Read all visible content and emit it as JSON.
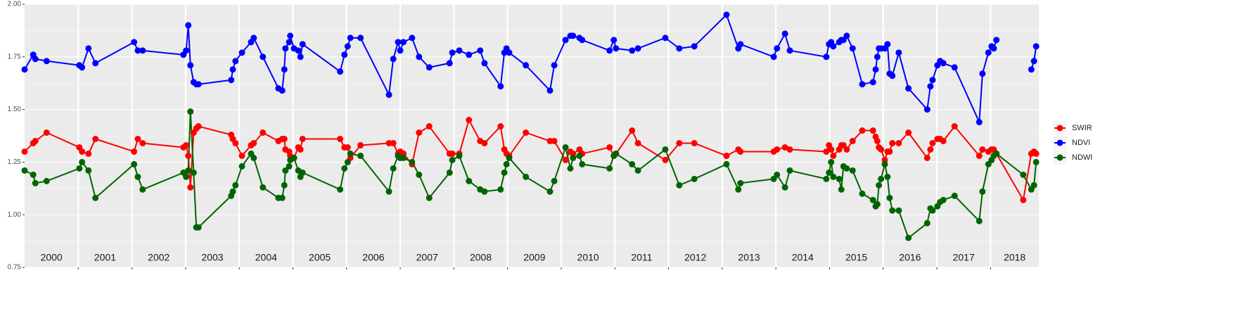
{
  "chart_data": {
    "type": "line",
    "x": [
      2000.0,
      2000.16,
      2000.2,
      2000.41,
      2001.02,
      2001.07,
      2001.19,
      2001.32,
      2002.04,
      2002.11,
      2002.2,
      2002.96,
      2003.01,
      2003.05,
      2003.09,
      2003.15,
      2003.2,
      2003.24,
      2003.85,
      2003.88,
      2003.93,
      2004.05,
      2004.22,
      2004.27,
      2004.44,
      2004.73,
      2004.8,
      2004.84,
      2004.86,
      2004.93,
      2004.95,
      2005.02,
      2005.1,
      2005.14,
      2005.18,
      2005.88,
      2005.96,
      2006.02,
      2006.07,
      2006.26,
      2006.79,
      2006.87,
      2006.96,
      2007.0,
      2007.06,
      2007.22,
      2007.35,
      2007.54,
      2007.92,
      2007.97,
      2008.1,
      2008.28,
      2008.49,
      2008.57,
      2008.87,
      2008.94,
      2008.98,
      2009.03,
      2009.34,
      2009.79,
      2009.87,
      2010.08,
      2010.17,
      2010.22,
      2010.34,
      2010.39,
      2010.9,
      2010.98,
      2011.02,
      2011.32,
      2011.43,
      2011.94,
      2012.2,
      2012.48,
      2013.08,
      2013.3,
      2013.34,
      2013.96,
      2014.02,
      2014.17,
      2014.26,
      2014.94,
      2014.99,
      2015.03,
      2015.07,
      2015.18,
      2015.22,
      2015.26,
      2015.32,
      2015.43,
      2015.61,
      2015.81,
      2015.86,
      2015.89,
      2015.92,
      2015.96,
      2016.03,
      2016.08,
      2016.12,
      2016.17,
      2016.29,
      2016.47,
      2016.82,
      2016.88,
      2016.92,
      2017.01,
      2017.06,
      2017.12,
      2017.33,
      2017.79,
      2017.85,
      2017.96,
      2018.02,
      2018.06,
      2018.11,
      2018.61,
      2018.76,
      2018.81,
      2018.85
    ],
    "series": [
      {
        "name": "SWIR",
        "color": "#ff0000",
        "values": [
          1.3,
          1.34,
          1.35,
          1.39,
          1.32,
          1.3,
          1.29,
          1.36,
          1.3,
          1.36,
          1.34,
          1.32,
          1.33,
          1.28,
          1.13,
          1.39,
          1.41,
          1.42,
          1.38,
          1.36,
          1.34,
          1.28,
          1.33,
          1.34,
          1.39,
          1.35,
          1.36,
          1.36,
          1.31,
          1.3,
          1.28,
          1.27,
          1.32,
          1.31,
          1.36,
          1.36,
          1.32,
          1.32,
          1.27,
          1.33,
          1.34,
          1.34,
          1.29,
          1.3,
          1.29,
          1.24,
          1.39,
          1.42,
          1.29,
          1.29,
          1.29,
          1.45,
          1.35,
          1.34,
          1.42,
          1.31,
          1.29,
          1.28,
          1.39,
          1.35,
          1.35,
          1.26,
          1.3,
          1.29,
          1.31,
          1.29,
          1.32,
          1.28,
          1.29,
          1.4,
          1.34,
          1.26,
          1.34,
          1.34,
          1.28,
          1.31,
          1.3,
          1.3,
          1.31,
          1.32,
          1.31,
          1.3,
          1.33,
          1.31,
          1.28,
          1.31,
          1.33,
          1.33,
          1.31,
          1.35,
          1.4,
          1.4,
          1.37,
          1.35,
          1.32,
          1.31,
          1.26,
          1.3,
          1.3,
          1.34,
          1.34,
          1.39,
          1.27,
          1.31,
          1.34,
          1.36,
          1.36,
          1.35,
          1.42,
          1.28,
          1.31,
          1.3,
          1.31,
          1.31,
          1.29,
          1.07,
          1.29,
          1.3,
          1.29
        ]
      },
      {
        "name": "NDVI",
        "color": "#0000ff",
        "values": [
          1.69,
          1.76,
          1.74,
          1.73,
          1.71,
          1.7,
          1.79,
          1.72,
          1.82,
          1.78,
          1.78,
          1.76,
          1.78,
          1.9,
          1.71,
          1.63,
          1.62,
          1.62,
          1.64,
          1.69,
          1.73,
          1.77,
          1.82,
          1.84,
          1.75,
          1.6,
          1.59,
          1.69,
          1.79,
          1.82,
          1.85,
          1.79,
          1.78,
          1.75,
          1.81,
          1.68,
          1.76,
          1.8,
          1.84,
          1.84,
          1.57,
          1.74,
          1.82,
          1.78,
          1.82,
          1.84,
          1.75,
          1.7,
          1.72,
          1.77,
          1.78,
          1.76,
          1.78,
          1.72,
          1.61,
          1.77,
          1.79,
          1.77,
          1.71,
          1.59,
          1.71,
          1.83,
          1.85,
          1.85,
          1.84,
          1.83,
          1.78,
          1.83,
          1.79,
          1.78,
          1.79,
          1.84,
          1.79,
          1.8,
          1.95,
          1.79,
          1.81,
          1.75,
          1.79,
          1.86,
          1.78,
          1.75,
          1.81,
          1.82,
          1.8,
          1.82,
          1.83,
          1.83,
          1.85,
          1.79,
          1.62,
          1.63,
          1.69,
          1.75,
          1.79,
          1.79,
          1.79,
          1.81,
          1.67,
          1.66,
          1.77,
          1.6,
          1.5,
          1.61,
          1.64,
          1.71,
          1.73,
          1.72,
          1.7,
          1.44,
          1.67,
          1.77,
          1.8,
          1.79,
          1.83,
          null,
          1.69,
          1.73,
          1.8
        ]
      },
      {
        "name": "NDWI",
        "color": "#006400",
        "values": [
          1.21,
          1.19,
          1.15,
          1.16,
          1.22,
          1.25,
          1.21,
          1.08,
          1.24,
          1.18,
          1.12,
          1.2,
          1.18,
          1.21,
          1.49,
          1.2,
          0.94,
          0.94,
          1.09,
          1.11,
          1.14,
          1.23,
          1.29,
          1.27,
          1.13,
          1.08,
          1.08,
          1.14,
          1.21,
          1.23,
          1.26,
          1.27,
          1.21,
          1.18,
          1.2,
          1.12,
          1.22,
          1.25,
          1.29,
          1.28,
          1.11,
          1.22,
          1.28,
          1.27,
          1.27,
          1.25,
          1.19,
          1.08,
          1.2,
          1.26,
          1.28,
          1.16,
          1.12,
          1.11,
          1.12,
          1.2,
          1.24,
          1.27,
          1.18,
          1.11,
          1.16,
          1.32,
          1.22,
          1.27,
          1.28,
          1.24,
          1.22,
          1.28,
          1.29,
          1.24,
          1.21,
          1.31,
          1.14,
          1.17,
          1.24,
          1.12,
          1.15,
          1.17,
          1.19,
          1.13,
          1.21,
          1.17,
          1.2,
          1.25,
          1.18,
          1.17,
          1.12,
          1.23,
          1.22,
          1.21,
          1.1,
          1.07,
          1.04,
          1.05,
          1.14,
          1.17,
          1.24,
          1.18,
          1.08,
          1.02,
          1.02,
          0.89,
          0.96,
          1.03,
          1.02,
          1.04,
          1.06,
          1.07,
          1.09,
          0.97,
          1.11,
          1.24,
          1.26,
          1.28,
          1.29,
          1.19,
          1.12,
          1.14,
          1.25
        ]
      }
    ],
    "xlim": [
      2000,
      2018.9
    ],
    "xticks": [
      2001,
      2002,
      2003,
      2004,
      2005,
      2006,
      2007,
      2008,
      2009,
      2010,
      2011,
      2012,
      2013,
      2014,
      2015,
      2016,
      2017,
      2018
    ],
    "year_labels": [
      {
        "value": 2000.5,
        "label": "2000"
      },
      {
        "value": 2001.5,
        "label": "2001"
      },
      {
        "value": 2002.5,
        "label": "2002"
      },
      {
        "value": 2003.5,
        "label": "2003"
      },
      {
        "value": 2004.5,
        "label": "2004"
      },
      {
        "value": 2005.5,
        "label": "2005"
      },
      {
        "value": 2006.5,
        "label": "2006"
      },
      {
        "value": 2007.5,
        "label": "2007"
      },
      {
        "value": 2008.5,
        "label": "2008"
      },
      {
        "value": 2009.5,
        "label": "2009"
      },
      {
        "value": 2010.5,
        "label": "2010"
      },
      {
        "value": 2011.5,
        "label": "2011"
      },
      {
        "value": 2012.5,
        "label": "2012"
      },
      {
        "value": 2013.5,
        "label": "2013"
      },
      {
        "value": 2014.5,
        "label": "2014"
      },
      {
        "value": 2015.5,
        "label": "2015"
      },
      {
        "value": 2016.5,
        "label": "2016"
      },
      {
        "value": 2017.5,
        "label": "2017"
      },
      {
        "value": 2018.45,
        "label": "2018"
      }
    ],
    "ylim": [
      0.75,
      2.0
    ],
    "yticks": [
      0.75,
      {
        "value": 1.0,
        "label": "1.00"
      },
      1.25,
      {
        "value": 1.5,
        "label": "1.50"
      },
      1.75,
      {
        "value": 2.0,
        "label": "2.00"
      }
    ],
    "grid": true,
    "legend": "right"
  }
}
